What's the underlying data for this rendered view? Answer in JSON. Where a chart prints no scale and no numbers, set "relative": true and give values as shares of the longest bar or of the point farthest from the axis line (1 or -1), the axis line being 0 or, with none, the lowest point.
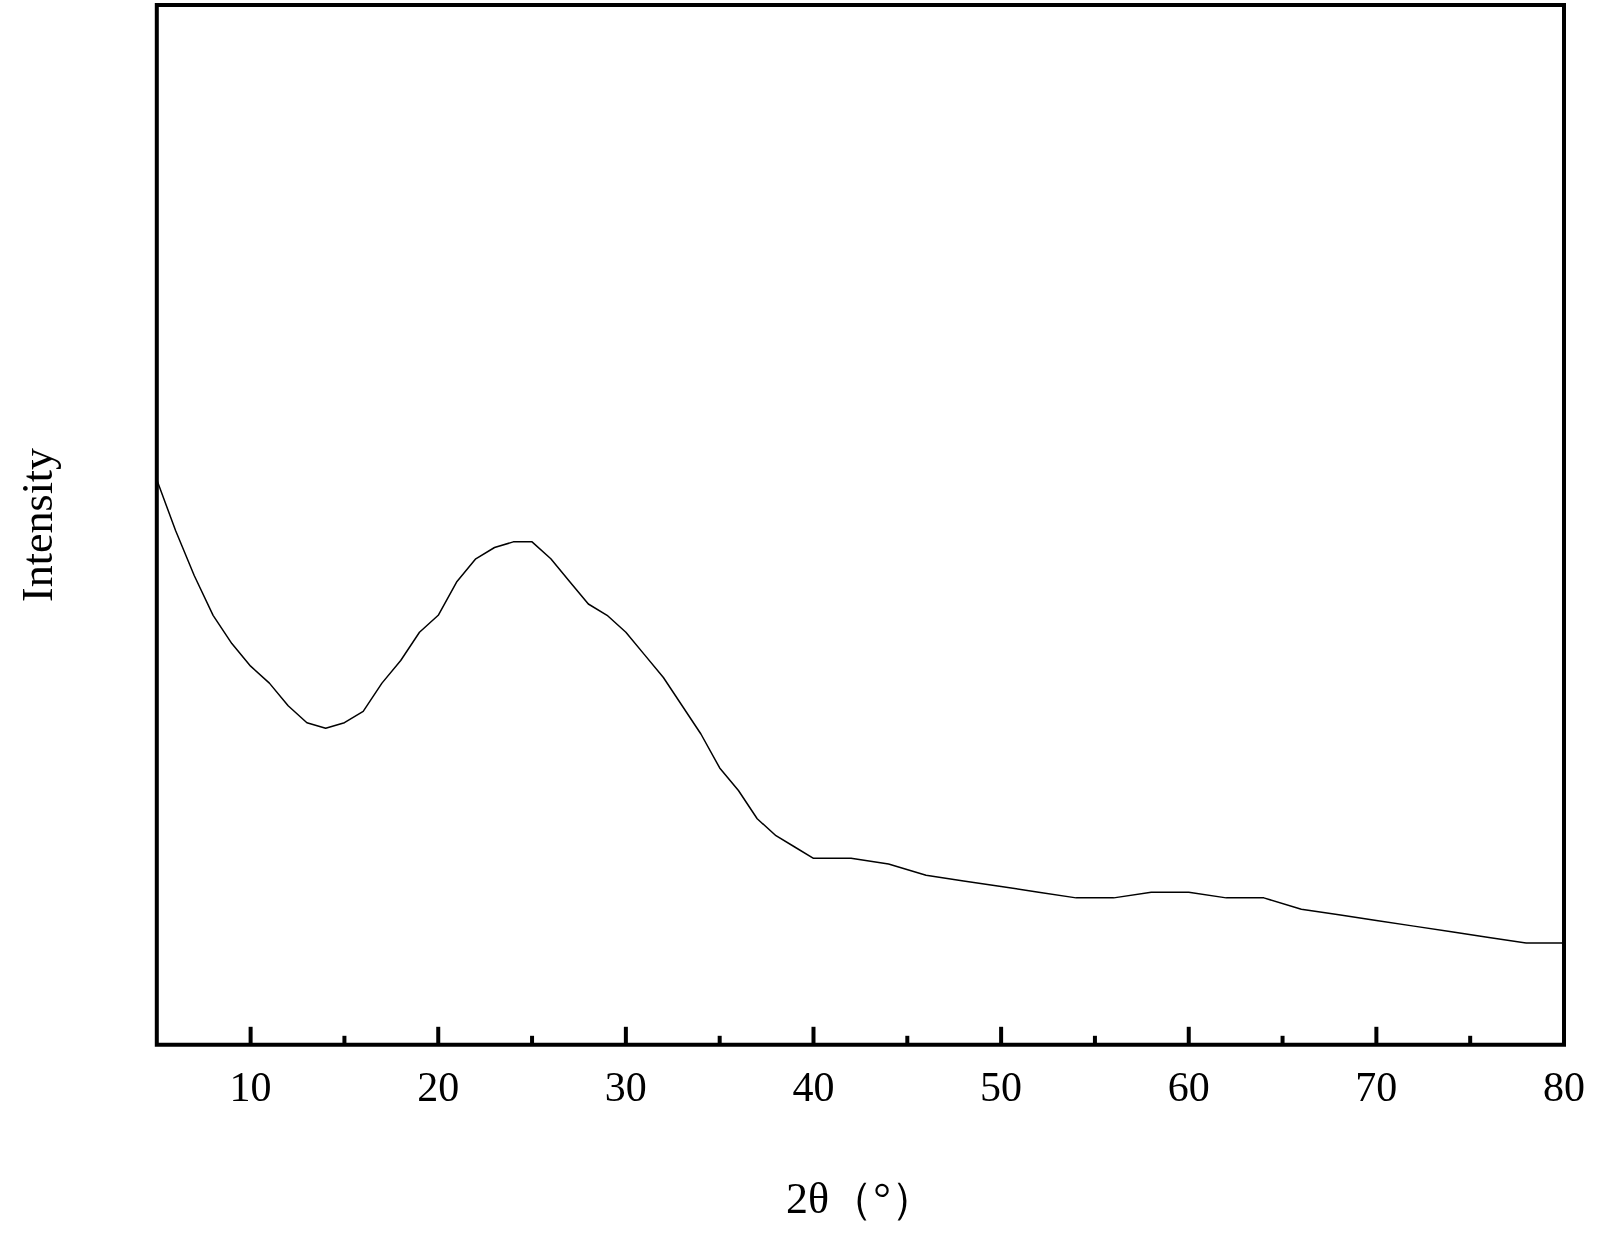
{
  "chart_data": {
    "type": "line",
    "relative": true,
    "xlabel": "2θ（°）",
    "ylabel": "Intensity",
    "xlim": [
      5,
      80
    ],
    "xticks": [
      10,
      {
        "value": 15,
        "label": null
      },
      20,
      {
        "value": 25,
        "label": null
      },
      30,
      {
        "value": 35,
        "label": null
      },
      40,
      {
        "value": 45,
        "label": null
      },
      50,
      {
        "value": 55,
        "label": null
      },
      60,
      {
        "value": 65,
        "label": null
      },
      70,
      {
        "value": 75,
        "label": null
      },
      80
    ],
    "grid": false,
    "legend": false,
    "marker": "none",
    "x": [
      5,
      6,
      7,
      8,
      9,
      10,
      11,
      12,
      13,
      14,
      15,
      16,
      17,
      18,
      19,
      20,
      21,
      22,
      23,
      24,
      25,
      26,
      27,
      28,
      29,
      30,
      31,
      32,
      33,
      34,
      35,
      36,
      37,
      38,
      39,
      40,
      42,
      44,
      46,
      48,
      50,
      52,
      54,
      56,
      58,
      60,
      62,
      64,
      66,
      68,
      70,
      72,
      74,
      76,
      78,
      80
    ],
    "series": [
      {
        "color": "#000000",
        "values": [
          1,
          0.91,
          0.83,
          0.76,
          0.71,
          0.67,
          0.64,
          0.6,
          0.57,
          0.56,
          0.57,
          0.59,
          0.64,
          0.68,
          0.73,
          0.76,
          0.82,
          0.86,
          0.88,
          0.89,
          0.89,
          0.86,
          0.82,
          0.78,
          0.76,
          0.73,
          0.69,
          0.65,
          0.6,
          0.55,
          0.49,
          0.45,
          0.4,
          0.37,
          0.35,
          0.33,
          0.33,
          0.32,
          0.3,
          0.29,
          0.28,
          0.27,
          0.26,
          0.26,
          0.27,
          0.27,
          0.26,
          0.26,
          0.24,
          0.23,
          0.22,
          0.21,
          0.2,
          0.19,
          0.18,
          0.18
        ]
      }
    ]
  }
}
